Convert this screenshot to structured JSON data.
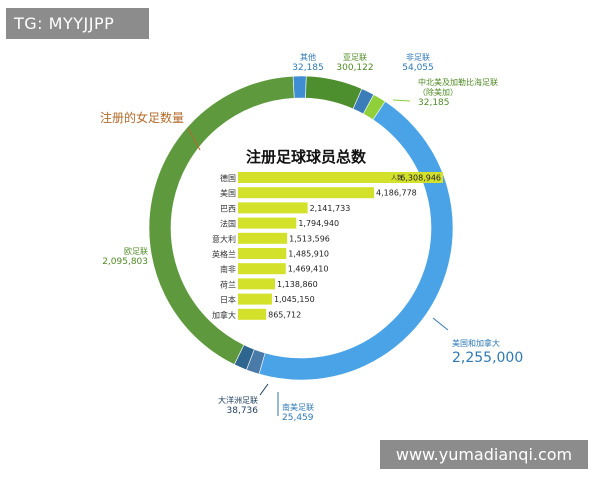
{
  "watermarks": {
    "top": "TG: MYYJJPP",
    "bottom": "www.yumadianqi.com"
  },
  "colors": {
    "europe": "#5e9a3d",
    "asia": "#4d8f2e",
    "north_america": "#4aa3e6",
    "africa": "#3a7db8",
    "central_america": "#8fcf3a",
    "oceania": "#2f6690",
    "south_america": "#4a7aa8",
    "other": "#3f8ed4",
    "bar": "#d4e12a",
    "title": "#111111",
    "label_blue": "#2e79b5",
    "label_green": "#4f8a24",
    "label_orange": "#b26a2a"
  },
  "chart_data": {
    "type": "pie",
    "donut": true,
    "title": "注册足球球员总数",
    "annotation": "注册的女足数量",
    "ring": [
      {
        "name": "其他",
        "value": "32,185",
        "raw": 32185,
        "key": "other"
      },
      {
        "name": "亚足联",
        "value": "300,122",
        "raw": 300122,
        "key": "asia"
      },
      {
        "name": "非足联",
        "value": "54,055",
        "raw": 54055,
        "key": "africa"
      },
      {
        "name": "中北美及加勒比海足联\n（除美加）",
        "value": "32,185",
        "raw": 32185,
        "key": "central_america"
      },
      {
        "name": "美国和加拿大",
        "value": "2,255,000",
        "raw": 2255000,
        "key": "north_america"
      },
      {
        "name": "南美足联",
        "value": "25,459",
        "raw": 25459,
        "key": "south_america"
      },
      {
        "name": "大洋洲足联",
        "value": "38,736",
        "raw": 38736,
        "key": "oceania"
      },
      {
        "name": "欧足联",
        "value": "2,095,803",
        "raw": 2095803,
        "key": "europe"
      }
    ],
    "bars": {
      "unit_label": "人数",
      "categories": [
        "德国",
        "美国",
        "巴西",
        "法国",
        "意大利",
        "英格兰",
        "南非",
        "荷兰",
        "日本",
        "加拿大"
      ],
      "values": [
        6308946,
        4186778,
        2141733,
        1794940,
        1513596,
        1485910,
        1469410,
        1138860,
        1045150,
        865712
      ],
      "labels": [
        "6,308,946",
        "4,186,778",
        "2,141,733",
        "1,794,940",
        "1,513,596",
        "1,485,910",
        "1,469,410",
        "1,138,860",
        "1,045,150",
        "865,712"
      ]
    }
  }
}
